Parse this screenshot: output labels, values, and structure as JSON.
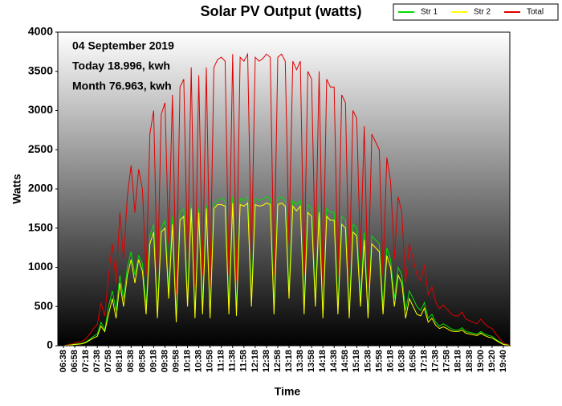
{
  "chart_data": {
    "type": "line",
    "title": "Solar PV Output (watts)",
    "y_label": "Watts",
    "x_label": "Time",
    "annotations": [
      "04 September 2019",
      "Today 18.996, kwh",
      "Month 76.963, kwh"
    ],
    "ylim": [
      0,
      4000
    ],
    "yticks": [
      0,
      500,
      1000,
      1500,
      2000,
      2500,
      3000,
      3500,
      4000
    ],
    "legend": "top-right",
    "categories": [
      "06:38",
      null,
      null,
      "06:58",
      null,
      null,
      "07:18",
      null,
      null,
      "07:38",
      null,
      null,
      "07:58",
      null,
      null,
      "08:18",
      null,
      null,
      "08:38",
      null,
      null,
      "08:58",
      null,
      null,
      "09:18",
      null,
      null,
      "09:38",
      null,
      null,
      "09:58",
      null,
      null,
      "10:18",
      null,
      null,
      "10:38",
      null,
      null,
      "10:58",
      null,
      null,
      "11:18",
      null,
      null,
      "11:38",
      null,
      null,
      "11:58",
      null,
      null,
      "12:18",
      null,
      null,
      "12:38",
      null,
      null,
      "12:58",
      null,
      null,
      "13:18",
      null,
      null,
      "13:38",
      null,
      null,
      "13:58",
      null,
      null,
      "14:18",
      null,
      null,
      "14:38",
      null,
      null,
      "14:58",
      null,
      null,
      "15:18",
      null,
      null,
      "15:38",
      null,
      null,
      "15:58",
      null,
      null,
      "16:18",
      null,
      null,
      "16:38",
      null,
      null,
      "16:58",
      null,
      null,
      "17:18",
      null,
      null,
      "17:38",
      null,
      null,
      "17:58",
      null,
      null,
      "18:18",
      null,
      null,
      "18:38",
      null,
      null,
      "19:00",
      null,
      null,
      "19:20",
      null,
      null,
      "19:40",
      null,
      null
    ],
    "series": [
      {
        "name": "Str 1",
        "color": "#00e000",
        "values": [
          0,
          5,
          10,
          20,
          25,
          30,
          50,
          80,
          120,
          150,
          300,
          200,
          500,
          700,
          450,
          900,
          600,
          1000,
          1200,
          900,
          1150,
          1050,
          500,
          1400,
          1550,
          450,
          1500,
          1600,
          700,
          1650,
          350,
          1700,
          1750,
          600,
          1800,
          400,
          1750,
          500,
          1800,
          400,
          1800,
          1850,
          1880,
          1850,
          500,
          1900,
          450,
          1880,
          1850,
          1900,
          600,
          1880,
          1850,
          1870,
          1900,
          1880,
          500,
          1880,
          1900,
          1850,
          700,
          1850,
          1800,
          1850,
          500,
          1800,
          1750,
          600,
          1800,
          400,
          1750,
          1700,
          1700,
          500,
          1650,
          1600,
          450,
          1550,
          1500,
          600,
          1450,
          400,
          1400,
          1350,
          1300,
          500,
          1250,
          1100,
          600,
          1000,
          900,
          450,
          700,
          600,
          500,
          450,
          550,
          350,
          400,
          300,
          250,
          280,
          250,
          220,
          200,
          200,
          230,
          180,
          170,
          160,
          150,
          180,
          150,
          130,
          120,
          80,
          50,
          20,
          10,
          0
        ]
      },
      {
        "name": "Str 2",
        "color": "#ffff00",
        "values": [
          0,
          5,
          8,
          15,
          20,
          25,
          40,
          70,
          100,
          120,
          250,
          180,
          400,
          600,
          350,
          800,
          500,
          900,
          1100,
          800,
          1100,
          950,
          400,
          1300,
          1450,
          350,
          1450,
          1500,
          600,
          1550,
          300,
          1600,
          1650,
          500,
          1750,
          350,
          1700,
          400,
          1750,
          350,
          1750,
          1800,
          1800,
          1780,
          400,
          1820,
          380,
          1800,
          1780,
          1820,
          500,
          1800,
          1780,
          1790,
          1820,
          1800,
          400,
          1800,
          1820,
          1780,
          600,
          1780,
          1720,
          1780,
          400,
          1700,
          1650,
          500,
          1700,
          350,
          1650,
          1600,
          1600,
          400,
          1550,
          1500,
          350,
          1450,
          1400,
          500,
          1350,
          350,
          1300,
          1250,
          1200,
          400,
          1150,
          1000,
          500,
          900,
          800,
          350,
          600,
          500,
          400,
          380,
          480,
          300,
          350,
          260,
          220,
          240,
          220,
          190,
          180,
          180,
          200,
          160,
          150,
          140,
          130,
          160,
          130,
          110,
          100,
          70,
          40,
          15,
          8,
          0
        ]
      },
      {
        "name": "Total",
        "color": "#e00000",
        "values": [
          0,
          10,
          18,
          35,
          45,
          55,
          90,
          150,
          220,
          270,
          550,
          380,
          900,
          1300,
          800,
          1700,
          1100,
          1900,
          2300,
          1700,
          2250,
          2000,
          900,
          2700,
          3000,
          800,
          2950,
          3100,
          1300,
          3200,
          650,
          3300,
          3400,
          1100,
          3550,
          750,
          3450,
          900,
          3550,
          750,
          3550,
          3650,
          3680,
          3630,
          900,
          3720,
          830,
          3680,
          3630,
          3720,
          1100,
          3680,
          3630,
          3660,
          3720,
          3680,
          900,
          3680,
          3720,
          3630,
          1300,
          3630,
          3520,
          3630,
          900,
          3500,
          3400,
          1100,
          3500,
          750,
          3400,
          3300,
          3300,
          900,
          3200,
          3100,
          800,
          3000,
          2900,
          1100,
          2800,
          750,
          2700,
          2600,
          2500,
          900,
          2400,
          2100,
          1100,
          1900,
          1700,
          800,
          1300,
          1100,
          900,
          830,
          1030,
          650,
          750,
          560,
          470,
          520,
          470,
          410,
          380,
          380,
          430,
          340,
          320,
          300,
          280,
          340,
          280,
          240,
          220,
          150,
          90,
          35,
          18,
          0
        ]
      }
    ]
  }
}
